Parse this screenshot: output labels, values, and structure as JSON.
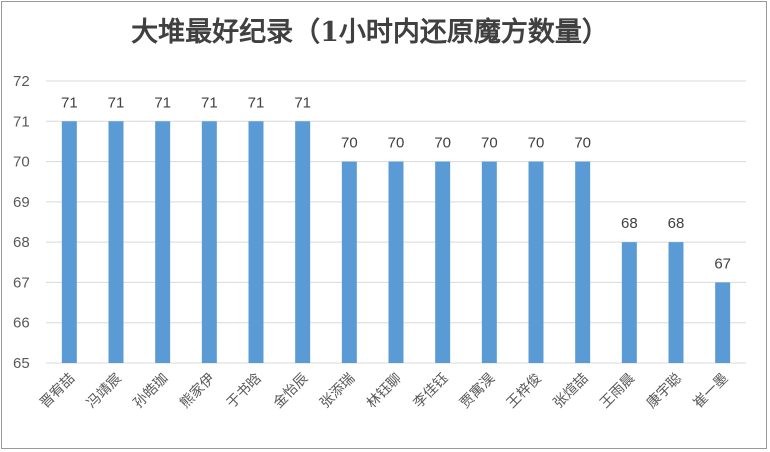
{
  "chart_data": {
    "type": "bar",
    "title": "大堆最好纪录（1小时内还原魔方数量）",
    "xlabel": "",
    "ylabel": "",
    "ylim": [
      65,
      72
    ],
    "yticks": [
      65,
      66,
      67,
      68,
      69,
      70,
      71,
      72
    ],
    "grid": true,
    "legend": "none",
    "bar_color": "#5b9bd5",
    "grid_color": "#d9d9d9",
    "categories": [
      "晋宥喆",
      "冯靖宸",
      "孙皓珈",
      "熊家伊",
      "于书晗",
      "金怡辰",
      "张添瑞",
      "林钰聊",
      "李佳钰",
      "贾寓淏",
      "王梓俊",
      "张煊喆",
      "王雨晨",
      "康宇聪",
      "崔一墨"
    ],
    "values": [
      71,
      71,
      71,
      71,
      71,
      71,
      70,
      70,
      70,
      70,
      70,
      70,
      68,
      68,
      67
    ]
  }
}
